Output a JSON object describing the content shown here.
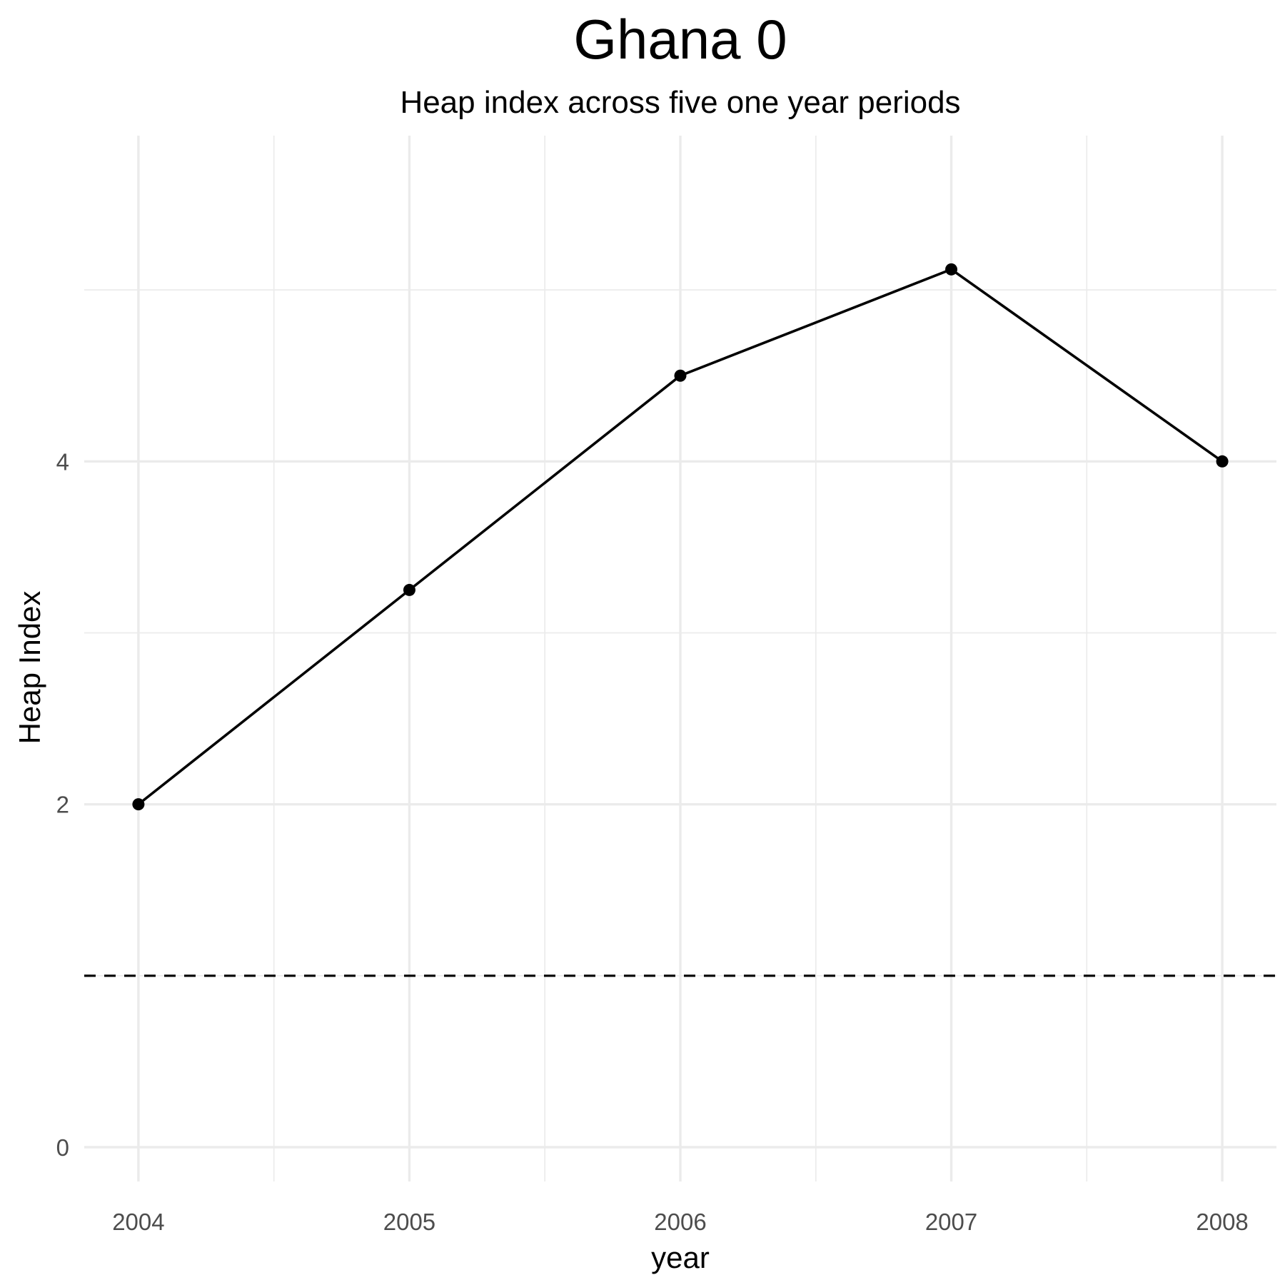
{
  "chart_data": {
    "type": "line",
    "title": "Ghana 0",
    "subtitle": "Heap index across five one year periods",
    "xlabel": "year",
    "ylabel": "Heap Index",
    "x": [
      2004,
      2005,
      2006,
      2007,
      2008
    ],
    "x_tick_labels": [
      "2004",
      "2005",
      "2006",
      "2007",
      "2008"
    ],
    "y_ticks": [
      0,
      2,
      4
    ],
    "y_tick_labels": [
      "0",
      "2",
      "4"
    ],
    "series": [
      {
        "values": [
          2.0,
          3.25,
          4.5,
          5.12,
          4.0
        ],
        "color": "#000000"
      }
    ],
    "reference_line": {
      "y": 1.0,
      "style": "dashed",
      "color": "#000000"
    },
    "xlim": [
      2003.8,
      2008.2
    ],
    "ylim": [
      -0.2,
      5.9
    ],
    "grid": true,
    "legend": "none"
  }
}
